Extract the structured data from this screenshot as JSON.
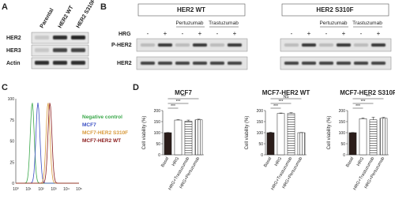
{
  "panel_labels": [
    "A",
    "B",
    "C",
    "D"
  ],
  "blot_a": {
    "columns": [
      "Parental",
      "HER2 WT",
      "HER2 S310F"
    ],
    "rows": [
      "HER2",
      "HER3",
      "Actin"
    ]
  },
  "blot_b": {
    "groups": [
      "HER2 WT",
      "HER2 S310F"
    ],
    "treatment_row": "HRG",
    "treatments": [
      "Pertuzumab",
      "Trastuzumab"
    ],
    "signs": [
      "-",
      "+"
    ],
    "rows": [
      "P-HER2",
      "HER2"
    ]
  },
  "flow_c": {
    "legend": [
      "Negative control",
      "MCF7",
      "MCF7-HER2 S310F",
      "MCF7-HER2 WT"
    ],
    "colors": [
      "#3aa84a",
      "#3b4fc4",
      "#d89a3c",
      "#8b1c1c"
    ],
    "xtick_labels": [
      "10⁰",
      "10¹",
      "10²",
      "10³",
      "10⁴",
      "10⁵"
    ],
    "ytick_labels": [
      "0",
      "25",
      "50",
      "75",
      "100"
    ]
  },
  "chart_data": [
    {
      "type": "bar",
      "title": "MCF7",
      "y_label": "Cell viability (%)",
      "categories": [
        "Basal",
        "HRG",
        "HRG+Trastuzumab",
        "HRG+Pertuzumab"
      ],
      "values": [
        100,
        157,
        152,
        158
      ],
      "errors": [
        1,
        2,
        5,
        3
      ],
      "bar_colors": [
        "#2b1d1a",
        "#ffffff",
        "#ffffff",
        "#ffffff"
      ],
      "hatch": [
        "none",
        "none",
        "horizontal",
        "vertical"
      ],
      "annotations": [
        "***",
        "***",
        "***"
      ],
      "ylim": [
        0,
        200
      ],
      "yticks": [
        0,
        50,
        100,
        150,
        200
      ]
    },
    {
      "type": "bar",
      "title": "MCF7-HER2 WT",
      "y_label": "Cell viability (%)",
      "categories": [
        "Basal",
        "HRG",
        "HRG+Trastuzumab",
        "HRG+Pertuzumab"
      ],
      "values": [
        100,
        187,
        187,
        100
      ],
      "errors": [
        2,
        2,
        3,
        1
      ],
      "bar_colors": [
        "#2b1d1a",
        "#ffffff",
        "#ffffff",
        "#ffffff"
      ],
      "hatch": [
        "none",
        "none",
        "horizontal",
        "vertical"
      ],
      "annotations": [
        "***",
        "***",
        "NS"
      ],
      "ylim": [
        0,
        200
      ],
      "yticks": [
        0,
        50,
        100,
        150,
        200
      ]
    },
    {
      "type": "bar",
      "title": "MCF7-HER2 S310F",
      "y_label": "Cell viability (%)",
      "categories": [
        "Basal",
        "HRG",
        "HRG+Trastuzumab",
        "HRG+Pertuzumab"
      ],
      "values": [
        100,
        163,
        158,
        165
      ],
      "errors": [
        1,
        4,
        12,
        4
      ],
      "bar_colors": [
        "#2b1d1a",
        "#ffffff",
        "#ffffff",
        "#ffffff"
      ],
      "hatch": [
        "none",
        "none",
        "horizontal",
        "vertical"
      ],
      "annotations": [
        "***",
        "***",
        "***"
      ],
      "ylim": [
        0,
        200
      ],
      "yticks": [
        0,
        50,
        100,
        150,
        200
      ]
    }
  ]
}
